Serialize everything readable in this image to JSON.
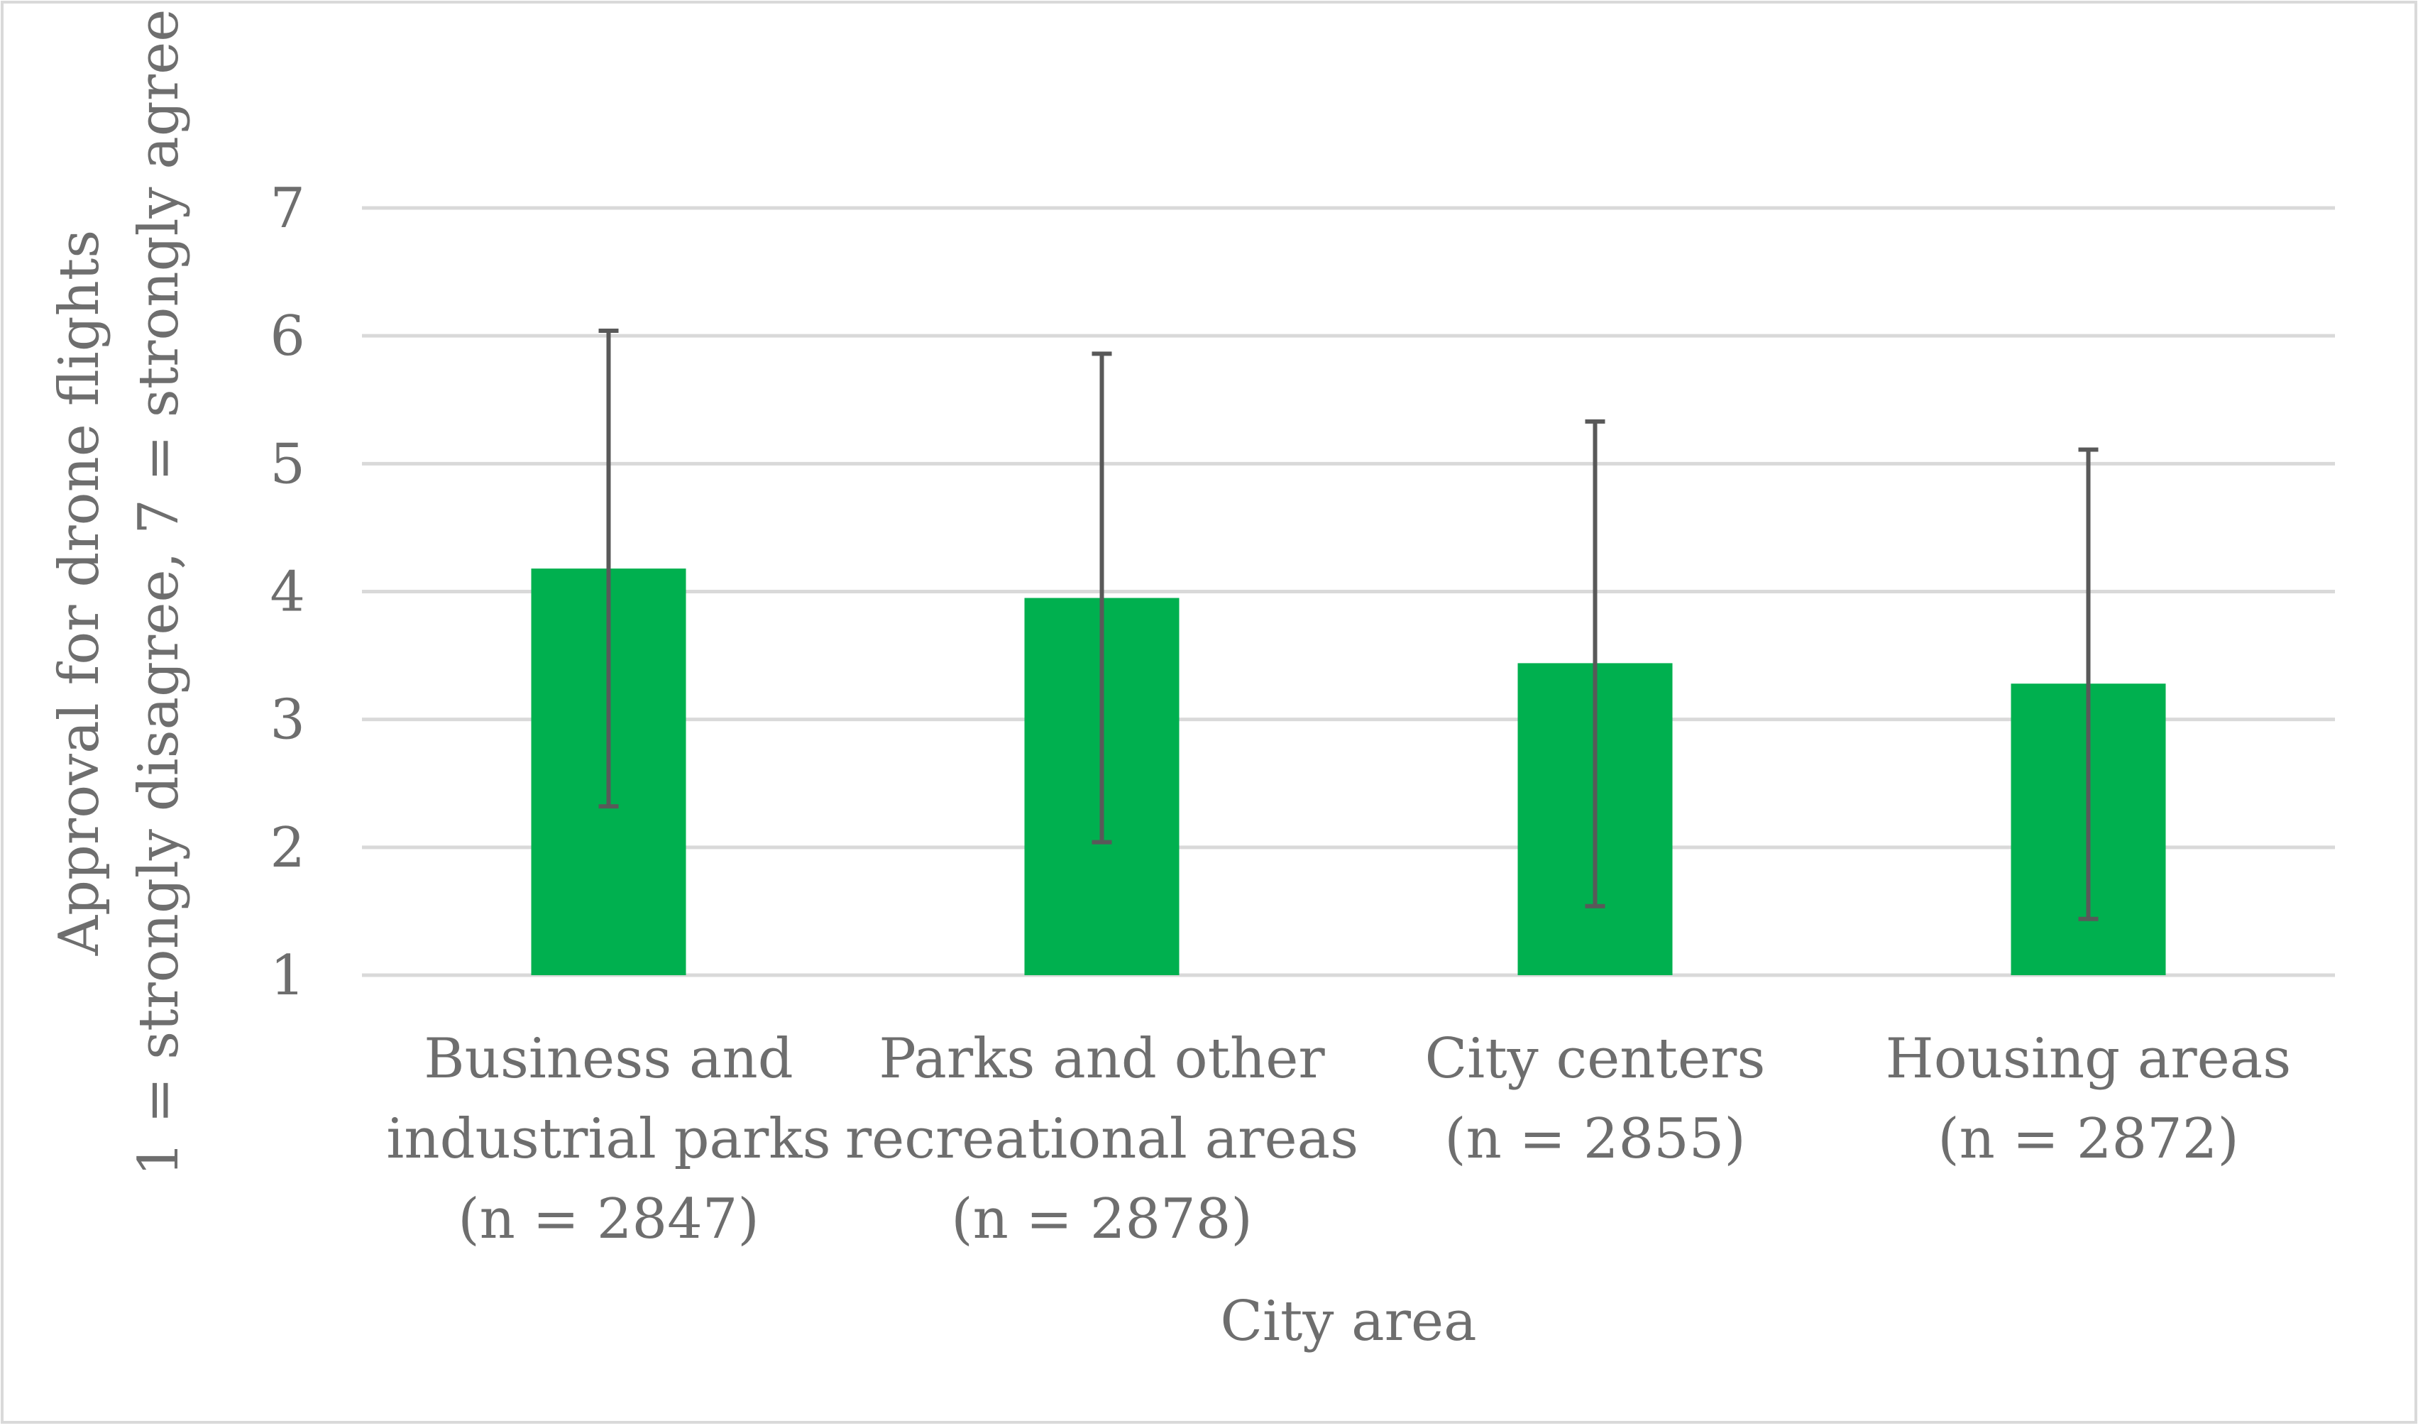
{
  "chart_data": {
    "type": "bar",
    "title": "",
    "xlabel": "City area",
    "ylabel_lines": [
      "Approval for drone flights",
      "1 = strongly disagree, 7 = strongly agree"
    ],
    "ylim": [
      1,
      7
    ],
    "yticks": [
      1,
      2,
      3,
      4,
      5,
      6,
      7
    ],
    "grid": true,
    "legend": "none",
    "categories": [
      [
        "Business and",
        "industrial parks",
        "(n = 2847)"
      ],
      [
        "Parks and other",
        "recreational areas",
        "(n = 2878)"
      ],
      [
        "City centers",
        "(n = 2855)"
      ],
      [
        "Housing areas",
        "(n = 2872)"
      ]
    ],
    "values": [
      4.18,
      3.95,
      3.44,
      3.28
    ],
    "error_bars": [
      {
        "low": 2.32,
        "high": 6.04
      },
      {
        "low": 2.04,
        "high": 5.86
      },
      {
        "low": 1.54,
        "high": 5.33
      },
      {
        "low": 1.44,
        "high": 5.11
      }
    ],
    "bar_color": "#00b04f",
    "error_color": "#595959",
    "grid_color": "#d9d9d9",
    "border_color": "#d9d9d9"
  }
}
